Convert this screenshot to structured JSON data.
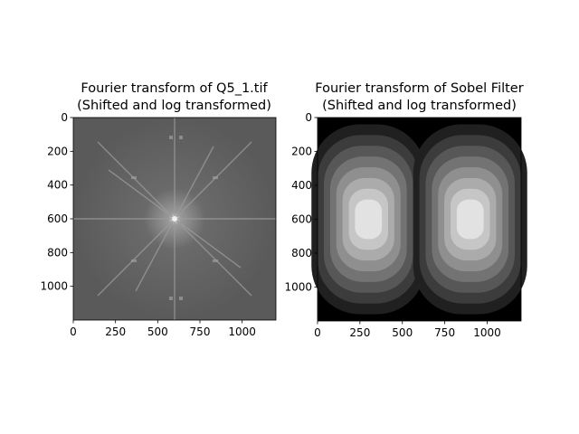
{
  "chart_data": [
    {
      "type": "heatmap",
      "title_lines": [
        "Fourier transform of Q5_1.tif",
        "(Shifted and log transformed)"
      ],
      "xticks": [
        0,
        250,
        500,
        750,
        1000
      ],
      "yticks": [
        0,
        200,
        400,
        600,
        800,
        1000
      ],
      "xlim": [
        0,
        1200
      ],
      "ylim": [
        1200,
        0
      ],
      "colormap": "gray",
      "description": "log-magnitude spectrum, bright center at (600,600) with radial streaks"
    },
    {
      "type": "heatmap",
      "title_lines": [
        "Fourier transform of Sobel Filter",
        "(Shifted and log transformed)"
      ],
      "xticks": [
        0,
        250,
        500,
        750,
        1000
      ],
      "yticks": [
        0,
        200,
        400,
        600,
        800,
        1000
      ],
      "xlim": [
        0,
        1200
      ],
      "ylim": [
        1200,
        0
      ],
      "colormap": "gray",
      "lobe_centers": [
        [
          300,
          600
        ],
        [
          900,
          600
        ]
      ],
      "contour_levels": 8
    }
  ]
}
